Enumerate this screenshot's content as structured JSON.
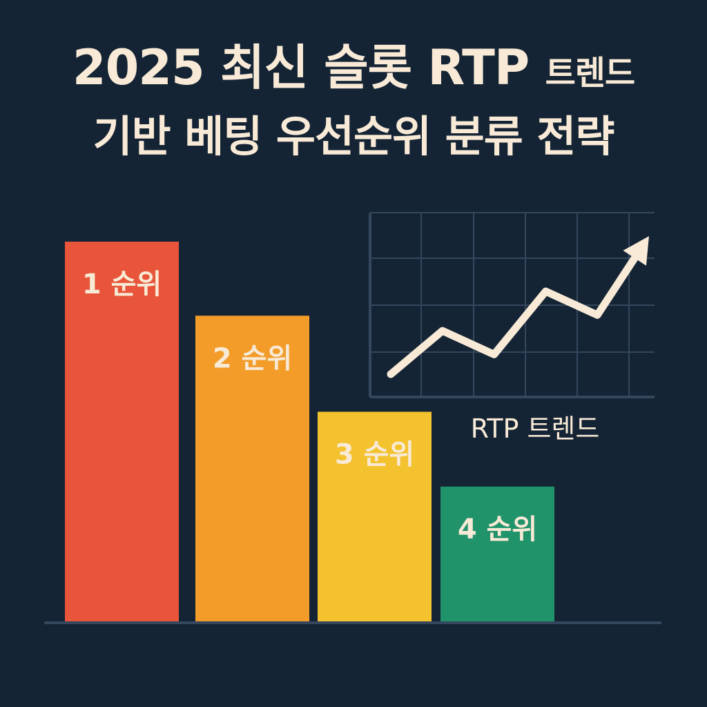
{
  "title": {
    "line1_main": "2025 최신 슬롯 RTP",
    "line1_small": "트렌드",
    "line2": "기반 베팅 우선순위 분류 전략"
  },
  "colors": {
    "background": "#152435",
    "text": "#f8ead6",
    "grid": "#34475d",
    "axis": "#34475d"
  },
  "chart_data": [
    {
      "type": "bar",
      "categories": [
        "1 순위",
        "2 순위",
        "3 순위",
        "4 순위"
      ],
      "values": [
        100,
        80.5,
        55.2,
        35.5
      ],
      "colors": [
        "#e8553a",
        "#f39c2a",
        "#f4c22e",
        "#21936b"
      ],
      "ylim": [
        0,
        100
      ],
      "grid": false,
      "data_labels": true
    },
    {
      "type": "line",
      "title": "RTP 트렌드",
      "x": [
        0,
        1,
        2,
        3,
        4,
        5
      ],
      "values": [
        0,
        2.2,
        1,
        4.2,
        3,
        7
      ],
      "arrow_end": true,
      "grid": true,
      "xlabel": "",
      "ylabel": ""
    }
  ]
}
